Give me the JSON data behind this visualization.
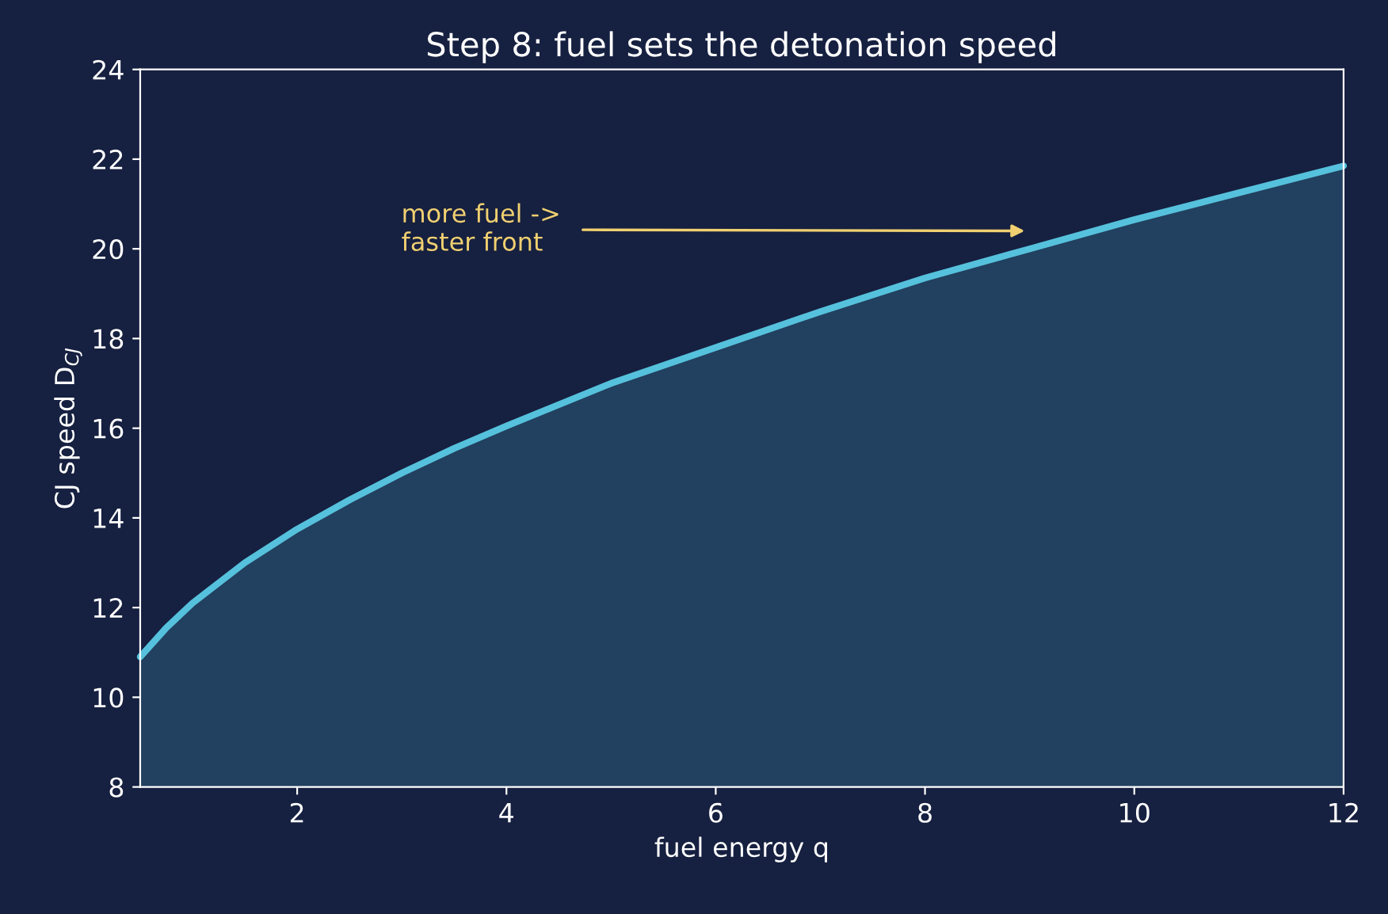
{
  "chart_data": {
    "type": "area",
    "title": "Step 8: fuel sets the detonation speed",
    "xlabel": "fuel energy q",
    "ylabel": "CJ speed D$_{CJ}$",
    "x": [
      0.5,
      0.75,
      1,
      1.5,
      2,
      2.5,
      3,
      3.5,
      4,
      5,
      6,
      7,
      8,
      9,
      10,
      11,
      12
    ],
    "series": [
      {
        "color": "#56c1dc",
        "values": [
          10.9,
          11.55,
          12.1,
          13.0,
          13.75,
          14.4,
          15.0,
          15.55,
          16.05,
          17.0,
          17.8,
          18.6,
          19.35,
          20.0,
          20.65,
          21.25,
          21.85
        ]
      }
    ],
    "xlim": [
      0.5,
      12
    ],
    "xticks": [
      2,
      4,
      6,
      8,
      10,
      12
    ],
    "ylim": [
      8,
      24
    ],
    "yticks": [
      8,
      10,
      12,
      14,
      16,
      18,
      20,
      22,
      24
    ],
    "grid": false,
    "legend": false,
    "annotations": [
      "more fuel ->\nfaster front"
    ]
  }
}
